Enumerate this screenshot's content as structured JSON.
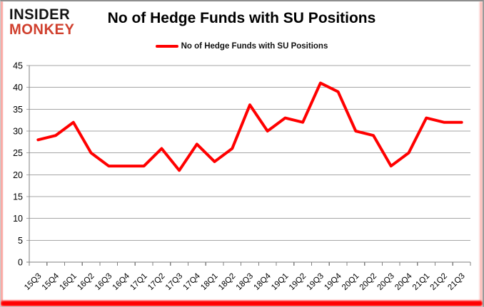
{
  "header": {
    "logo_line1": "INSIDER",
    "logo_line2": "MONKEY",
    "title": "No of Hedge Funds with SU Positions"
  },
  "legend": {
    "label": "No of Hedge Funds with SU Positions"
  },
  "colors": {
    "line": "#FF0000",
    "logo_red": "#D0402E",
    "grid": "#A6A6A6",
    "axis": "#808080",
    "tick_text": "#000000",
    "bottom_bar": "#FF0000"
  },
  "chart_data": {
    "type": "line",
    "title": "No of Hedge Funds with SU Positions",
    "series_name": "No of Hedge Funds with SU Positions",
    "categories": [
      "15Q3",
      "15Q4",
      "16Q1",
      "16Q2",
      "16Q3",
      "16Q4",
      "17Q1",
      "17Q2",
      "17Q3",
      "17Q4",
      "18Q1",
      "18Q2",
      "18Q3",
      "18Q4",
      "19Q1",
      "19Q2",
      "19Q3",
      "19Q4",
      "20Q1",
      "20Q2",
      "20Q3",
      "20Q4",
      "21Q1",
      "21Q2",
      "21Q3"
    ],
    "values": [
      28,
      29,
      32,
      25,
      22,
      22,
      22,
      26,
      21,
      27,
      23,
      26,
      36,
      30,
      33,
      32,
      41,
      39,
      30,
      29,
      22,
      25,
      33,
      32,
      32
    ],
    "xlabel": "",
    "ylabel": "",
    "ylim": [
      0,
      45
    ],
    "yticks": [
      0,
      5,
      10,
      15,
      20,
      25,
      30,
      35,
      40,
      45
    ],
    "grid": true,
    "legend_position": "top",
    "line_color": "#FF0000"
  }
}
